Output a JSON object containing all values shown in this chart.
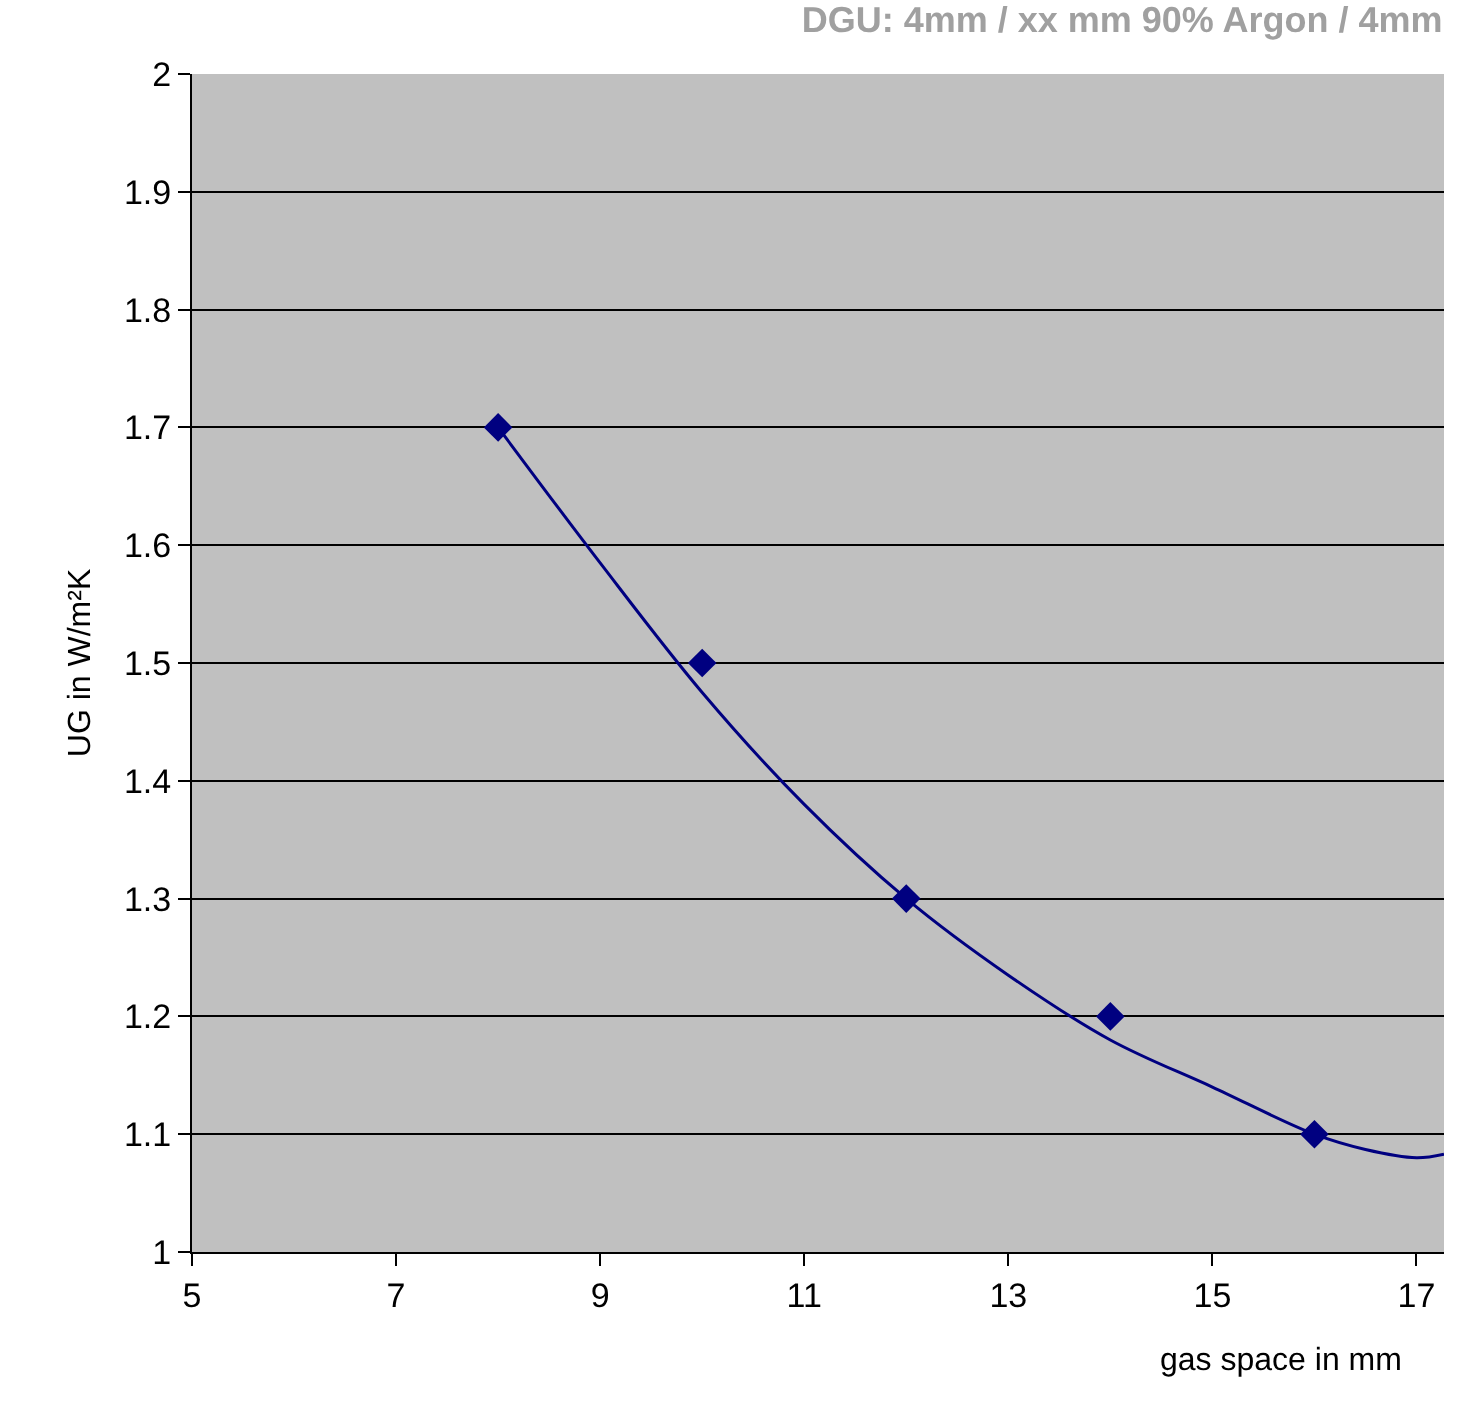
{
  "chart_data": {
    "type": "scatter",
    "title": "DGU: 4mm / xx mm 90% Argon / 4mm",
    "xlabel": "gas space in mm",
    "ylabel": "UG in W/m²K",
    "xlim": [
      5,
      17.27
    ],
    "xticks": [
      5,
      7,
      9,
      11,
      13,
      15,
      17
    ],
    "ylim": [
      1,
      2
    ],
    "yticks": [
      1,
      1.1,
      1.2,
      1.3,
      1.4,
      1.5,
      1.6,
      1.7,
      1.8,
      1.9,
      2
    ],
    "grid": "y",
    "marker": "diamond",
    "series": [
      {
        "type": "line",
        "color": "#000080",
        "line_style": "solid",
        "marker": "none",
        "x": [
          8,
          9,
          10,
          11,
          12,
          13,
          14,
          15,
          16,
          16.5,
          17,
          17.27
        ],
        "values": [
          1.7,
          1.585,
          1.475,
          1.38,
          1.3,
          1.235,
          1.18,
          1.14,
          1.1,
          1.087,
          1.08,
          1.083
        ]
      },
      {
        "color": "#000080",
        "x": [
          8,
          10,
          12,
          14,
          16
        ],
        "values": [
          1.7,
          1.5,
          1.3,
          1.2,
          1.1
        ]
      }
    ]
  }
}
